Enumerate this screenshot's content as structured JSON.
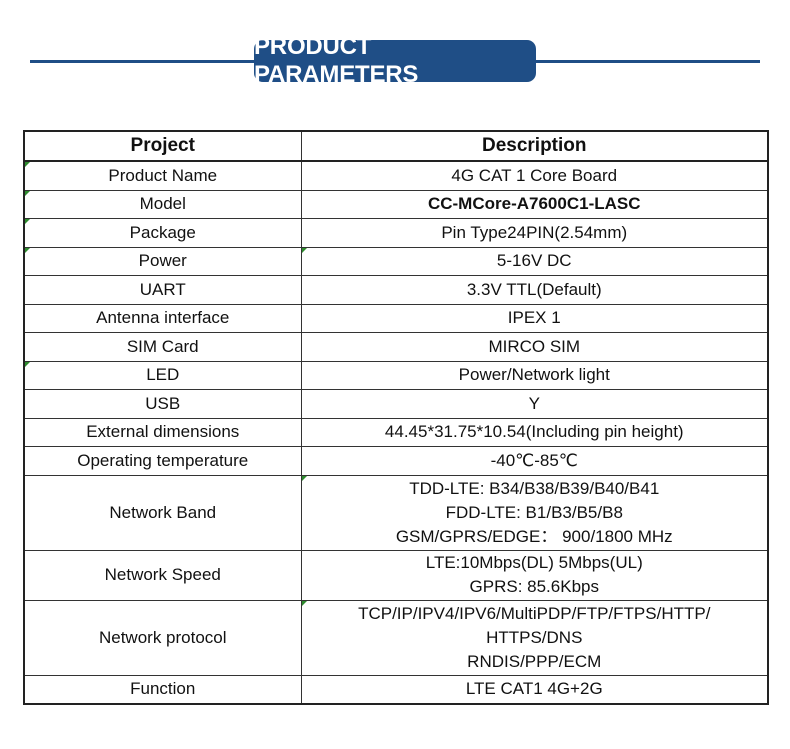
{
  "title": "PRODUCT PARAMETERS",
  "table": {
    "header": {
      "project": "Project",
      "description": "Description"
    },
    "rows": [
      {
        "project": "Product Name",
        "description": [
          "4G CAT 1 Core Board"
        ]
      },
      {
        "project": "Model",
        "description": [
          "CC-MCore-A7600C1-LASC"
        ]
      },
      {
        "project": "Package",
        "description": [
          "Pin Type24PIN(2.54mm)"
        ]
      },
      {
        "project": "Power",
        "description": [
          "5-16V DC"
        ]
      },
      {
        "project": "UART",
        "description": [
          "3.3V TTL(Default)"
        ]
      },
      {
        "project": "Antenna interface",
        "description": [
          "IPEX 1"
        ]
      },
      {
        "project": "SIM Card",
        "description": [
          "MIRCO SIM"
        ]
      },
      {
        "project": "LED",
        "description": [
          "Power/Network light"
        ]
      },
      {
        "project": "USB",
        "description": [
          "Y"
        ]
      },
      {
        "project": "External dimensions",
        "description": [
          "44.45*31.75*10.54(Including pin height)"
        ]
      },
      {
        "project": "Operating temperature",
        "description": [
          "-40℃-85℃"
        ]
      },
      {
        "project": "Network Band",
        "description": [
          "TDD-LTE:  B34/B38/B39/B40/B41",
          "FDD-LTE:  B1/B3/B5/B8",
          "GSM/GPRS/EDGE：  900/1800 MHz"
        ]
      },
      {
        "project": "Network Speed",
        "description": [
          "LTE:10Mbps(DL)  5Mbps(UL)",
          "GPRS: 85.6Kbps"
        ]
      },
      {
        "project": "Network protocol",
        "description": [
          "TCP/IP/IPV4/IPV6/MultiPDP/FTP/FTPS/HTTP/",
          "HTTPS/DNS",
          "RNDIS/PPP/ECM"
        ]
      },
      {
        "project": "Function",
        "description": [
          "LTE  CAT1 4G+2G"
        ]
      }
    ]
  }
}
